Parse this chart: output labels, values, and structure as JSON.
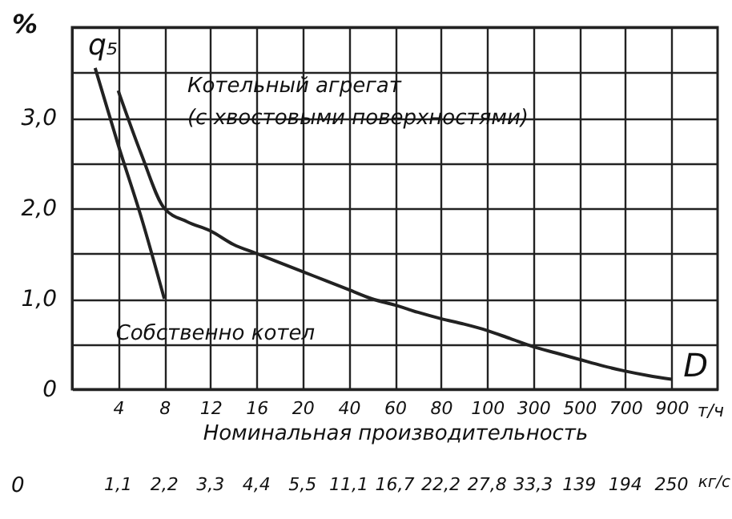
{
  "chart_data": {
    "type": "line",
    "title": "q₅",
    "ylabel": "%",
    "xlabel": "Номинальная производительность",
    "categories": [
      null,
      null,
      "4",
      null,
      "8",
      null,
      "12",
      null,
      "16",
      null,
      "20",
      null,
      "40",
      null,
      "60",
      null,
      "80",
      null,
      "100",
      null,
      "300",
      null,
      "500",
      null,
      "700",
      null,
      "900",
      null,
      null
    ],
    "series": [
      {
        "name": "Котельный агрегат (с хвостовыми поверхностями)",
        "color": "#222222",
        "values": [
          null,
          null,
          3.3,
          2.6,
          2.0,
          1.85,
          1.75,
          1.6,
          1.5,
          1.4,
          1.3,
          1.2,
          1.1,
          1.0,
          0.93,
          0.85,
          0.78,
          0.72,
          0.65,
          0.56,
          0.47,
          0.4,
          0.33,
          0.26,
          0.2,
          0.15,
          0.11,
          null,
          null
        ]
      },
      {
        "name": "Собственно котел",
        "color": "#222222",
        "values": [
          null,
          3.55,
          2.7,
          1.9,
          1.0,
          null,
          null,
          null,
          null,
          null,
          null,
          null,
          null,
          null,
          null,
          null,
          null,
          null,
          null,
          null,
          null,
          null,
          null,
          null,
          null,
          null,
          null,
          null,
          null
        ]
      }
    ],
    "ylim": [
      0,
      4
    ],
    "yticks": [
      0,
      {
        "value": 0.5,
        "label": null
      },
      {
        "value": 1,
        "label": "1,0"
      },
      {
        "value": 1.5,
        "label": null
      },
      {
        "value": 2,
        "label": "2,0"
      },
      {
        "value": 2.5,
        "label": null
      },
      {
        "value": 3,
        "label": "3,0"
      },
      {
        "value": 3.5,
        "label": null
      },
      {
        "value": 4,
        "label": null
      }
    ],
    "grid": true,
    "annotations": [
      "D",
      "т/ч",
      "0",
      "кг/с",
      "1,1",
      "2,2",
      "3,3",
      "4,4",
      "5,5",
      "11,1",
      "16,7",
      "22,2",
      "27,8",
      "33,3",
      "139",
      "194",
      "250"
    ]
  }
}
